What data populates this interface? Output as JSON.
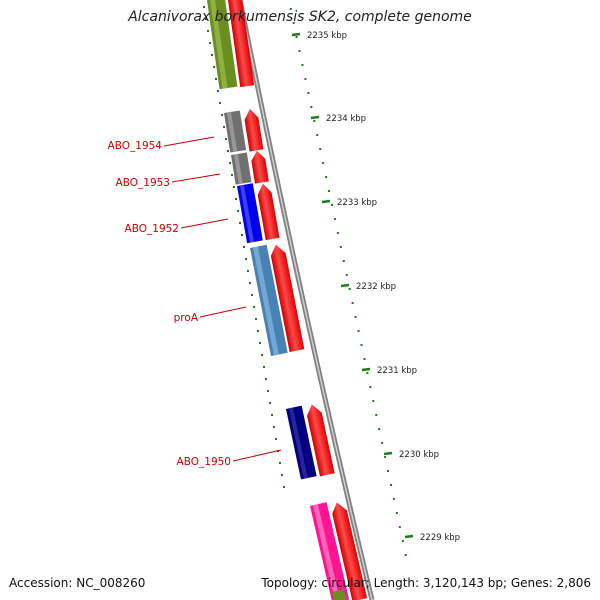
{
  "title": "Alcanivorax borkumensis SK2, complete genome",
  "footer": {
    "accession": "Accession: NC_008260",
    "summary": "Topology: circular; Length: 3,120,143 bp; Genes: 2,806"
  },
  "scale": {
    "tick_labels": [
      "2235 kbp",
      "2234 kbp",
      "2233 kbp",
      "2232 kbp",
      "2231 kbp",
      "2230 kbp",
      "2229 kbp"
    ]
  },
  "genes": [
    {
      "label": "ABO_1954",
      "color": "#707070"
    },
    {
      "label": "ABO_1953",
      "color": "#707070"
    },
    {
      "label": "ABO_1952",
      "color": "#0000ee"
    },
    {
      "label": "proA",
      "color": "#4682b4"
    },
    {
      "label": "ABO_1950",
      "color": "#000080"
    }
  ],
  "colors": {
    "gene_label": "#cc0000",
    "cds_arrow": "#ff0000",
    "backbone": "#808080",
    "gc_marks": "#1a7f1a",
    "tick_text": "#222222",
    "olive_feature": "#6b8e23",
    "pink_feature": "#ff1493"
  }
}
